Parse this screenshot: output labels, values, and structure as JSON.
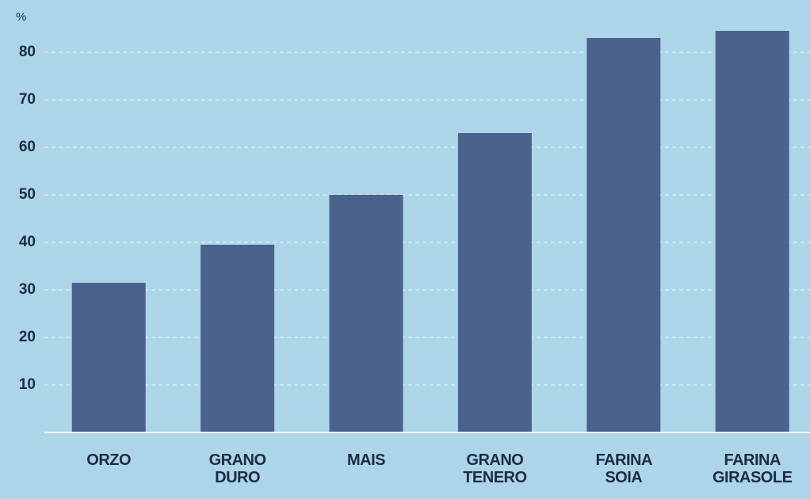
{
  "chart_data": {
    "type": "bar",
    "ylabel": "%",
    "categories": [
      "ORZO",
      "GRANO DURO",
      "MAIS",
      "GRANO TENERO",
      "FARINA SOIA",
      "FARINA GIRASOLE"
    ],
    "values": [
      31.5,
      39.5,
      50,
      63,
      83,
      84.5
    ],
    "color": "#4a628c",
    "ylim": [
      0,
      90
    ],
    "yticks": [
      10,
      20,
      30,
      40,
      50,
      60,
      70,
      80
    ],
    "grid": true
  }
}
